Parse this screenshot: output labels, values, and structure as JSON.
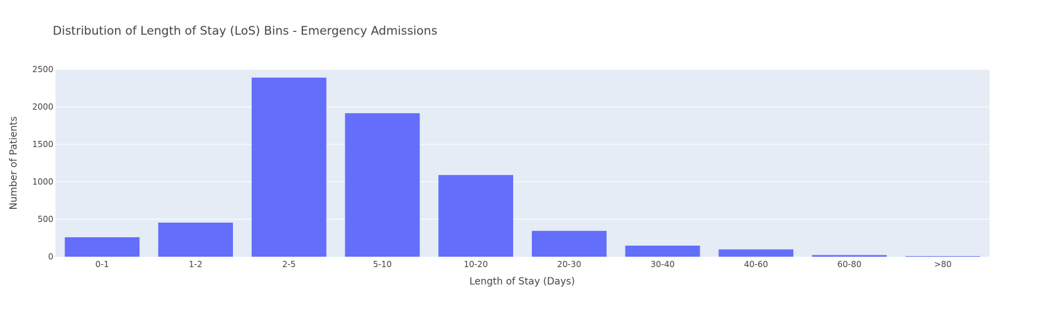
{
  "chart_data": {
    "type": "bar",
    "title": "Distribution of Length of Stay (LoS) Bins - Emergency Admissions",
    "xlabel": "Length of Stay (Days)",
    "ylabel": "Number of Patients",
    "categories": [
      "0-1",
      "1-2",
      "2-5",
      "5-10",
      "10-20",
      "20-30",
      "30-40",
      "40-60",
      "60-80",
      ">80"
    ],
    "values": [
      260,
      455,
      2390,
      1915,
      1090,
      345,
      148,
      98,
      22,
      8
    ],
    "ylim": [
      0,
      2500
    ],
    "yticks": [
      0,
      500,
      1000,
      1500,
      2000,
      2500
    ],
    "grid": true,
    "legend": "none",
    "colors": {
      "bar": "#636efa",
      "plot_background": "#e5ecf6",
      "gridline": "#ffffff",
      "text": "#444444"
    }
  }
}
